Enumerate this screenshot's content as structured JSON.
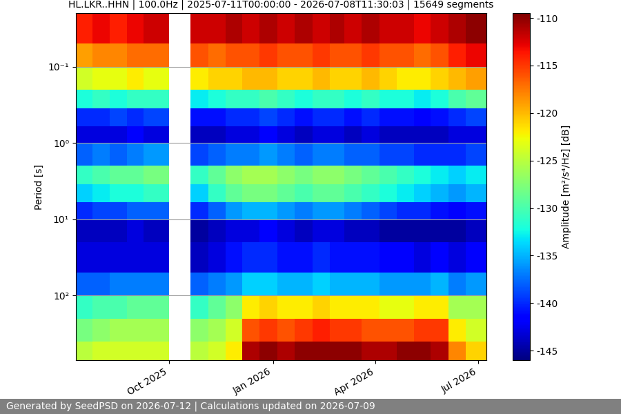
{
  "chart_data": {
    "type": "heatmap",
    "title": "HL.LKR..HHN | 100.0Hz | 2025-07-11T00:00:00 - 2026-07-08T11:30:03 | 15649 segments",
    "y_label": "Period [s]",
    "colorbar_label": "Amplitude [m²/s⁴/Hz] [dB]",
    "footer": "Generated by SeedPSD on 2026-07-12 | Calculations updated on 2026-07-09",
    "log": "y",
    "grid": true,
    "xlim": [
      "2025-07-11",
      "2026-07-08"
    ],
    "xticks": [
      {
        "value": "2025-10-01",
        "label": "Oct 2025"
      },
      {
        "value": "2026-01-01",
        "label": "Jan 2026"
      },
      {
        "value": "2026-04-01",
        "label": "Apr 2026"
      },
      {
        "value": "2026-07-01",
        "label": "Jul 2026"
      }
    ],
    "ylim": [
      700,
      0.02
    ],
    "yticks": [
      {
        "value": 0.1,
        "label": "10⁻¹"
      },
      {
        "value": 1,
        "label": "10⁰"
      },
      {
        "value": 10,
        "label": "10¹"
      },
      {
        "value": 100,
        "label": "10²"
      }
    ],
    "color_range": [
      -146,
      -109.5
    ],
    "color_ticks": [
      -145,
      -140,
      -135,
      -130,
      -125,
      -120,
      -115,
      -110
    ],
    "x_edges": [
      "2025-07-11",
      "2025-07-26",
      "2025-08-10",
      "2025-08-25",
      "2025-09-09",
      "2025-10-01",
      "2025-10-20",
      "2025-11-05",
      "2025-11-20",
      "2025-12-05",
      "2025-12-20",
      "2026-01-05",
      "2026-01-20",
      "2026-02-05",
      "2026-02-20",
      "2026-03-05",
      "2026-03-20",
      "2026-04-05",
      "2026-04-20",
      "2026-05-05",
      "2026-05-20",
      "2026-06-05",
      "2026-06-20",
      "2026-07-08"
    ],
    "y_edges": [
      0.02,
      0.05,
      0.1,
      0.2,
      0.35,
      0.6,
      1,
      2,
      3.5,
      6,
      10,
      20,
      50,
      100,
      200,
      400,
      700
    ],
    "cells": [
      [
        -114,
        -113,
        -114,
        -113,
        -112,
        null,
        -112,
        -112,
        -111,
        -112,
        -111,
        -112,
        -111,
        -112,
        -111,
        -112,
        -111,
        -112,
        -112,
        -113,
        -112,
        -111,
        -110
      ],
      [
        -119,
        -118,
        -118,
        -117,
        -117,
        null,
        -116,
        -117,
        -116,
        -116,
        -115,
        -116,
        -116,
        -115,
        -116,
        -116,
        -115,
        -116,
        -116,
        -117,
        -116,
        -114,
        -113
      ],
      [
        -124,
        -123,
        -123,
        -122,
        -123,
        null,
        -122,
        -121,
        -121,
        -120,
        -120,
        -121,
        -121,
        -120,
        -121,
        -121,
        -120,
        -121,
        -122,
        -122,
        -121,
        -120,
        -119
      ],
      [
        -132,
        -131,
        -132,
        -131,
        -131,
        null,
        -133,
        -132,
        -131,
        -131,
        -130,
        -131,
        -132,
        -131,
        -131,
        -132,
        -131,
        -132,
        -132,
        -133,
        -132,
        -130,
        -129
      ],
      [
        -140,
        -140,
        -139,
        -140,
        -139,
        null,
        -141,
        -141,
        -140,
        -140,
        -139,
        -140,
        -141,
        -140,
        -140,
        -141,
        -140,
        -141,
        -141,
        -142,
        -141,
        -140,
        -139
      ],
      [
        -143,
        -143,
        -143,
        -142,
        -143,
        null,
        -144,
        -144,
        -143,
        -143,
        -142,
        -143,
        -144,
        -143,
        -143,
        -144,
        -143,
        -144,
        -144,
        -144,
        -144,
        -143,
        -143
      ],
      [
        -138,
        -137,
        -138,
        -137,
        -136,
        null,
        -139,
        -138,
        -137,
        -137,
        -136,
        -137,
        -138,
        -137,
        -137,
        -138,
        -138,
        -139,
        -139,
        -140,
        -140,
        -140,
        -139
      ],
      [
        -131,
        -130,
        -129,
        -129,
        -128,
        null,
        -131,
        -129,
        -127,
        -126,
        -126,
        -127,
        -128,
        -127,
        -127,
        -128,
        -129,
        -130,
        -131,
        -132,
        -133,
        -134,
        -133
      ],
      [
        -134,
        -133,
        -132,
        -132,
        -131,
        null,
        -134,
        -131,
        -129,
        -128,
        -128,
        -129,
        -130,
        -129,
        -129,
        -130,
        -131,
        -132,
        -133,
        -134,
        -135,
        -136,
        -135
      ],
      [
        -140,
        -139,
        -139,
        -138,
        -138,
        null,
        -140,
        -138,
        -136,
        -135,
        -135,
        -136,
        -137,
        -136,
        -136,
        -137,
        -138,
        -139,
        -140,
        -140,
        -141,
        -142,
        -141
      ],
      [
        -144,
        -144,
        -144,
        -143,
        -144,
        null,
        -145,
        -144,
        -143,
        -143,
        -142,
        -143,
        -144,
        -143,
        -143,
        -144,
        -144,
        -145,
        -145,
        -145,
        -145,
        -145,
        -144
      ],
      [
        -143,
        -143,
        -143,
        -143,
        -143,
        null,
        -144,
        -143,
        -141,
        -140,
        -140,
        -141,
        -141,
        -140,
        -141,
        -141,
        -141,
        -142,
        -142,
        -143,
        -142,
        -143,
        -142
      ],
      [
        -138,
        -138,
        -137,
        -137,
        -137,
        null,
        -138,
        -137,
        -136,
        -134,
        -134,
        -135,
        -135,
        -134,
        -135,
        -135,
        -135,
        -136,
        -136,
        -136,
        -135,
        -137,
        -136
      ],
      [
        -131,
        -130,
        -130,
        -129,
        -129,
        null,
        -131,
        -129,
        -127,
        -122,
        -121,
        -122,
        -122,
        -121,
        -122,
        -122,
        -122,
        -123,
        -123,
        -122,
        -122,
        -126,
        -126
      ],
      [
        -128,
        -127,
        -126,
        -126,
        -126,
        null,
        -127,
        -126,
        -124,
        -116,
        -115,
        -116,
        -115,
        -114,
        -115,
        -115,
        -116,
        -116,
        -116,
        -115,
        -115,
        -122,
        -124
      ],
      [
        -125,
        -124,
        -124,
        -124,
        -124,
        null,
        -125,
        -124,
        -122,
        -111,
        -110,
        -111,
        -110,
        -110,
        -110,
        -110,
        -111,
        -111,
        -110,
        -110,
        -111,
        -118,
        -121
      ]
    ]
  }
}
